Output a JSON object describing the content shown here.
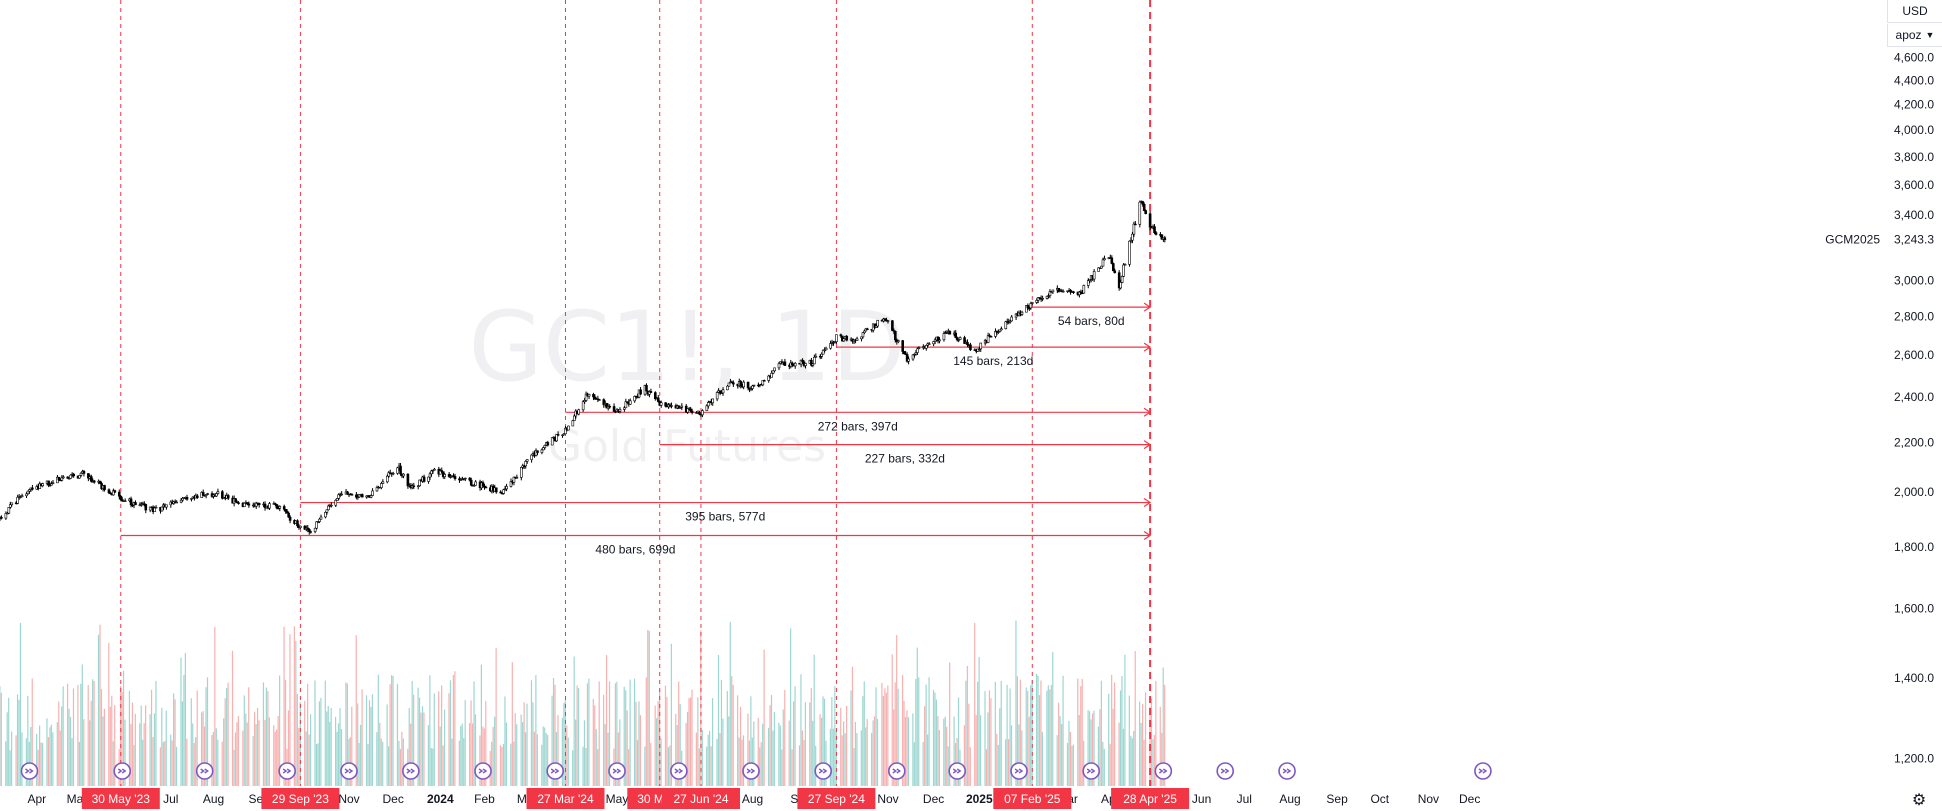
{
  "watermark": {
    "symbol": "GC1!, 1D",
    "description": "Gold Futures"
  },
  "controls": {
    "currency": "USD",
    "unit": "apoz"
  },
  "price_scale": {
    "ticks": [
      "4,600.0",
      "4,400.0",
      "4,200.0",
      "4,000.0",
      "3,800.0",
      "3,600.0",
      "3,400.0",
      "3,000.0",
      "2,800.0",
      "2,600.0",
      "2,400.0",
      "2,200.0",
      "2,000.0",
      "1,800.0",
      "1,600.0",
      "1,400.0",
      "1,200.0"
    ],
    "last_price_label": "3,243.3",
    "contract_label": "GCM2025"
  },
  "time_scale": {
    "labels": [
      {
        "text": "Apr",
        "date": "2023-04-03"
      },
      {
        "text": "May",
        "date": "2023-05-01"
      },
      {
        "text": "Jul",
        "date": "2023-07-03"
      },
      {
        "text": "Aug",
        "date": "2023-08-01"
      },
      {
        "text": "Sep",
        "date": "2023-09-01"
      },
      {
        "text": "Nov",
        "date": "2023-11-01"
      },
      {
        "text": "Dec",
        "date": "2023-12-01"
      },
      {
        "text": "2024",
        "date": "2024-01-02",
        "bold": true
      },
      {
        "text": "Feb",
        "date": "2024-02-01"
      },
      {
        "text": "Mar",
        "date": "2024-03-01"
      },
      {
        "text": "May",
        "date": "2024-05-01"
      },
      {
        "text": "Aug",
        "date": "2024-08-01"
      },
      {
        "text": "Sep",
        "date": "2024-09-03"
      },
      {
        "text": "Nov",
        "date": "2024-11-01"
      },
      {
        "text": "Dec",
        "date": "2024-12-02"
      },
      {
        "text": "2025",
        "date": "2025-01-02",
        "bold": true
      },
      {
        "text": "Mar",
        "date": "2025-03-03"
      },
      {
        "text": "Apr",
        "date": "2025-04-01"
      },
      {
        "text": "Jun",
        "date": "2025-06-02"
      },
      {
        "text": "Jul",
        "date": "2025-07-01"
      },
      {
        "text": "Aug",
        "date": "2025-08-01"
      },
      {
        "text": "Sep",
        "date": "2025-09-02"
      },
      {
        "text": "Oct",
        "date": "2025-10-01"
      },
      {
        "text": "Nov",
        "date": "2025-11-03"
      },
      {
        "text": "Dec",
        "date": "2025-12-01"
      }
    ]
  },
  "markers": [
    {
      "label": "30 May '23",
      "date": "2023-05-30"
    },
    {
      "label": "29 Sep '23",
      "date": "2023-09-29"
    },
    {
      "label": "27 Mar '24",
      "date": "2024-03-27"
    },
    {
      "label": "30 May '",
      "date": "2024-05-30"
    },
    {
      "label": "27 Jun '24",
      "date": "2024-06-27"
    },
    {
      "label": "27 Sep '24",
      "date": "2024-09-27"
    },
    {
      "label": "07 Feb '25",
      "date": "2025-02-07"
    },
    {
      "label": "28 Apr '25",
      "date": "2025-04-28",
      "emphasis": true
    }
  ],
  "measurements": [
    {
      "label": "54 bars, 80d",
      "start": "2025-02-07",
      "end": "2025-04-28",
      "price": 2850
    },
    {
      "label": "145 bars, 213d",
      "start": "2024-09-27",
      "end": "2025-04-28",
      "price": 2640
    },
    {
      "label": "272 bars, 397d",
      "start": "2024-03-27",
      "end": "2025-04-28",
      "price": 2330
    },
    {
      "label": "227 bars, 332d",
      "start": "2024-05-30",
      "end": "2025-04-28",
      "price": 2190
    },
    {
      "label": "395 bars, 577d",
      "start": "2023-09-29",
      "end": "2025-04-28",
      "price": 1960
    },
    {
      "label": "480 bars, 699d",
      "start": "2023-05-30",
      "end": "2025-04-28",
      "price": 1840
    }
  ],
  "event_icons": {
    "icon": "dividend-arrow-icon",
    "dates": [
      "2023-03-29",
      "2023-05-31",
      "2023-07-26",
      "2023-09-20",
      "2023-11-01",
      "2023-12-13",
      "2024-01-31",
      "2024-03-20",
      "2024-05-01",
      "2024-06-12",
      "2024-07-31",
      "2024-09-18",
      "2024-11-07",
      "2024-12-18",
      "2025-01-29",
      "2025-03-19",
      "2025-05-07",
      "2025-06-18",
      "2025-07-30",
      "2025-12-10"
    ]
  },
  "colors": {
    "up": "#26a69a",
    "down": "#ef5350",
    "candle": "#000000",
    "marker": "#f23645",
    "measure": "#f23645",
    "event_icon": "#7e57c2"
  },
  "chart_data": {
    "type": "candlestick",
    "title": "GC1!, 1D",
    "subtitle": "Gold Futures",
    "x_type": "date",
    "xlim": [
      "2023-03-09",
      "2025-12-25"
    ],
    "ylim": [
      1130,
      4620
    ],
    "y_scale": "log",
    "grid": false,
    "series": [
      {
        "name": "Gold Futures",
        "type": "candlestick",
        "approx_close_path": [
          [
            "2023-03-09",
            1900
          ],
          [
            "2023-03-24",
            1990
          ],
          [
            "2023-04-13",
            2040
          ],
          [
            "2023-05-04",
            2070
          ],
          [
            "2023-05-30",
            1975
          ],
          [
            "2023-06-22",
            1930
          ],
          [
            "2023-07-20",
            1990
          ],
          [
            "2023-08-04",
            1990
          ],
          [
            "2023-08-21",
            1950
          ],
          [
            "2023-09-13",
            1950
          ],
          [
            "2023-09-29",
            1870
          ],
          [
            "2023-10-06",
            1850
          ],
          [
            "2023-10-27",
            2000
          ],
          [
            "2023-11-14",
            1980
          ],
          [
            "2023-12-04",
            2100
          ],
          [
            "2023-12-13",
            2010
          ],
          [
            "2023-12-28",
            2080
          ],
          [
            "2024-01-22",
            2040
          ],
          [
            "2024-02-14",
            2000
          ],
          [
            "2024-03-04",
            2140
          ],
          [
            "2024-03-27",
            2250
          ],
          [
            "2024-04-12",
            2420
          ],
          [
            "2024-04-30",
            2330
          ],
          [
            "2024-05-20",
            2440
          ],
          [
            "2024-05-30",
            2370
          ],
          [
            "2024-06-27",
            2330
          ],
          [
            "2024-07-17",
            2470
          ],
          [
            "2024-08-05",
            2440
          ],
          [
            "2024-08-20",
            2560
          ],
          [
            "2024-09-10",
            2560
          ],
          [
            "2024-09-27",
            2690
          ],
          [
            "2024-10-10",
            2680
          ],
          [
            "2024-10-30",
            2790
          ],
          [
            "2024-11-14",
            2580
          ],
          [
            "2024-11-25",
            2640
          ],
          [
            "2024-12-12",
            2720
          ],
          [
            "2024-12-30",
            2620
          ],
          [
            "2025-01-17",
            2750
          ],
          [
            "2025-02-07",
            2870
          ],
          [
            "2025-02-24",
            2950
          ],
          [
            "2025-03-10",
            2910
          ],
          [
            "2025-03-31",
            3150
          ],
          [
            "2025-04-07",
            2970
          ],
          [
            "2025-04-22",
            3500
          ],
          [
            "2025-04-28",
            3330
          ],
          [
            "2025-05-08",
            3243
          ]
        ]
      },
      {
        "name": "Volume",
        "type": "histogram",
        "scale": "relative"
      }
    ],
    "last": {
      "date": "2025-05-08",
      "close": 3243.3
    }
  }
}
